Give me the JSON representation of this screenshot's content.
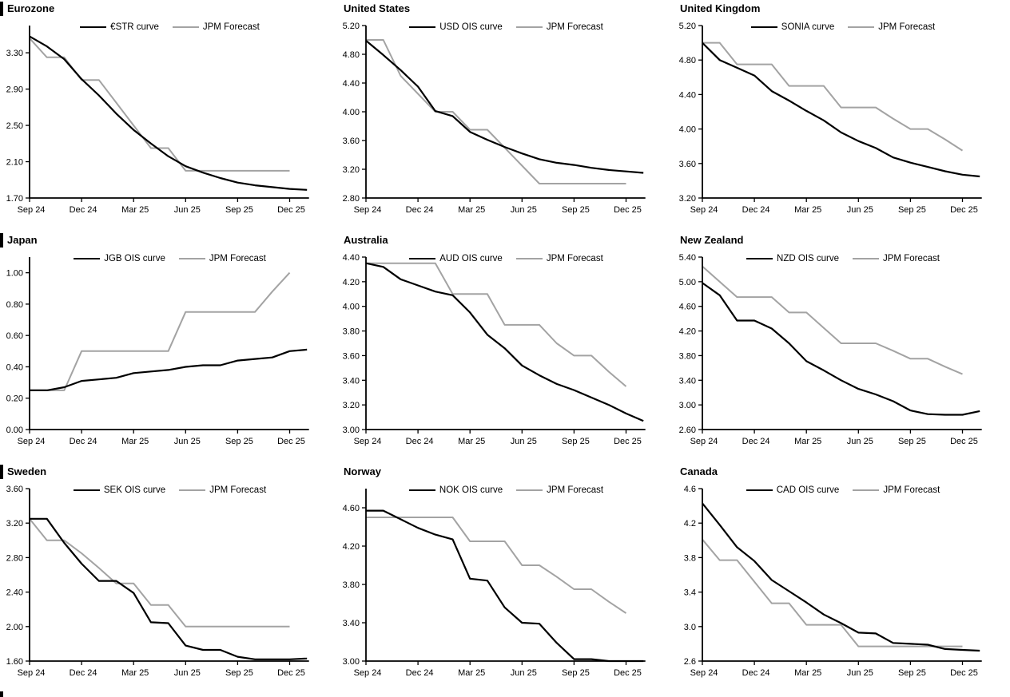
{
  "page": {
    "background": "#ffffff",
    "section_marker_color": "#000000",
    "black_series_color": "#000000",
    "gray_series_color": "#a3a3a3"
  },
  "chart_data": [
    {
      "type": "line",
      "title": "Eurozone",
      "has_left_section_bar": true,
      "x_tick_labels": [
        "Sep 24",
        "Dec 24",
        "Mar 25",
        "Jun 25",
        "Sep 25",
        "Dec 25"
      ],
      "y_ticks": [
        "1.70",
        "2.10",
        "2.50",
        "2.90",
        "3.30"
      ],
      "y_min": 1.7,
      "y_max": 3.6,
      "grid": false,
      "legend_position": "top-center",
      "series": [
        {
          "name": "€STR curve",
          "color": "#000000",
          "values": [
            3.48,
            3.37,
            3.23,
            3.01,
            2.83,
            2.63,
            2.45,
            2.3,
            2.16,
            2.05,
            1.98,
            1.92,
            1.87,
            1.84,
            1.82,
            1.8,
            1.79
          ]
        },
        {
          "name": "JPM Forecast",
          "color": "#a3a3a3",
          "values": [
            3.46,
            3.25,
            3.25,
            3.0,
            3.0,
            2.75,
            2.5,
            2.25,
            2.25,
            2.0,
            2.0,
            2.0,
            2.0,
            2.0,
            2.0,
            2.0
          ]
        }
      ]
    },
    {
      "type": "line",
      "title": "United States",
      "has_left_section_bar": false,
      "x_tick_labels": [
        "Sep 24",
        "Dec 24",
        "Mar 25",
        "Jun 25",
        "Sep 25",
        "Dec 25"
      ],
      "y_ticks": [
        "2.80",
        "3.20",
        "3.60",
        "4.00",
        "4.40",
        "4.80",
        "5.20"
      ],
      "y_min": 2.8,
      "y_max": 5.2,
      "grid": false,
      "legend_position": "top-center",
      "series": [
        {
          "name": "USD OIS curve",
          "color": "#000000",
          "values": [
            4.99,
            4.79,
            4.58,
            4.35,
            4.01,
            3.94,
            3.72,
            3.61,
            3.51,
            3.42,
            3.34,
            3.29,
            3.26,
            3.22,
            3.19,
            3.17,
            3.15
          ]
        },
        {
          "name": "JPM Forecast",
          "color": "#a3a3a3",
          "values": [
            5.0,
            5.0,
            4.5,
            4.25,
            4.0,
            4.0,
            3.75,
            3.75,
            3.5,
            3.25,
            3.0,
            3.0,
            3.0,
            3.0,
            3.0,
            3.0
          ]
        }
      ]
    },
    {
      "type": "line",
      "title": "United Kingdom",
      "has_left_section_bar": false,
      "x_tick_labels": [
        "Sep 24",
        "Dec 24",
        "Mar 25",
        "Jun 25",
        "Sep 25",
        "Dec 25"
      ],
      "y_ticks": [
        "3.20",
        "3.60",
        "4.00",
        "4.40",
        "4.80",
        "5.20"
      ],
      "y_min": 3.2,
      "y_max": 5.2,
      "grid": false,
      "legend_position": "top-center",
      "series": [
        {
          "name": "SONIA curve",
          "color": "#000000",
          "values": [
            5.0,
            4.8,
            4.71,
            4.62,
            4.44,
            4.33,
            4.21,
            4.1,
            3.96,
            3.86,
            3.78,
            3.67,
            3.61,
            3.56,
            3.51,
            3.47,
            3.45
          ]
        },
        {
          "name": "JPM Forecast",
          "color": "#a3a3a3",
          "values": [
            5.0,
            5.0,
            4.75,
            4.75,
            4.75,
            4.5,
            4.5,
            4.5,
            4.25,
            4.25,
            4.25,
            4.12,
            4.0,
            4.0,
            3.88,
            3.75
          ]
        }
      ]
    },
    {
      "type": "line",
      "title": "Japan",
      "has_left_section_bar": true,
      "x_tick_labels": [
        "Sep 24",
        "Dec 24",
        "Mar 25",
        "Jun 25",
        "Sep 25",
        "Dec 25"
      ],
      "y_ticks": [
        "0.00",
        "0.20",
        "0.40",
        "0.60",
        "0.80",
        "1.00"
      ],
      "y_min": 0.0,
      "y_max": 1.1,
      "grid": false,
      "legend_position": "top-center",
      "series": [
        {
          "name": "JGB OIS curve",
          "color": "#000000",
          "values": [
            0.25,
            0.25,
            0.27,
            0.31,
            0.32,
            0.33,
            0.36,
            0.37,
            0.38,
            0.4,
            0.41,
            0.41,
            0.44,
            0.45,
            0.46,
            0.5,
            0.51
          ]
        },
        {
          "name": "JPM Forecast",
          "color": "#a3a3a3",
          "values": [
            0.25,
            0.25,
            0.25,
            0.5,
            0.5,
            0.5,
            0.5,
            0.5,
            0.5,
            0.75,
            0.75,
            0.75,
            0.75,
            0.75,
            0.88,
            1.0
          ]
        }
      ]
    },
    {
      "type": "line",
      "title": "Australia",
      "has_left_section_bar": false,
      "x_tick_labels": [
        "Sep 24",
        "Dec 24",
        "Mar 25",
        "Jun 25",
        "Sep 25",
        "Dec 25"
      ],
      "y_ticks": [
        "3.00",
        "3.20",
        "3.40",
        "3.60",
        "3.80",
        "4.00",
        "4.20",
        "4.40"
      ],
      "y_min": 3.0,
      "y_max": 4.4,
      "grid": false,
      "legend_position": "top-center",
      "series": [
        {
          "name": "AUD OIS curve",
          "color": "#000000",
          "values": [
            4.35,
            4.32,
            4.22,
            4.17,
            4.12,
            4.09,
            3.95,
            3.77,
            3.66,
            3.52,
            3.44,
            3.37,
            3.32,
            3.26,
            3.2,
            3.13,
            3.07
          ]
        },
        {
          "name": "JPM Forecast",
          "color": "#a3a3a3",
          "values": [
            4.35,
            4.35,
            4.35,
            4.35,
            4.35,
            4.1,
            4.1,
            4.1,
            3.85,
            3.85,
            3.85,
            3.7,
            3.6,
            3.6,
            3.47,
            3.35
          ]
        }
      ]
    },
    {
      "type": "line",
      "title": "New Zealand",
      "has_left_section_bar": false,
      "x_tick_labels": [
        "Sep 24",
        "Dec 24",
        "Mar 25",
        "Jun 25",
        "Sep 25",
        "Dec 25"
      ],
      "y_ticks": [
        "2.60",
        "3.00",
        "3.40",
        "3.80",
        "4.20",
        "4.60",
        "5.00",
        "5.40"
      ],
      "y_min": 2.6,
      "y_max": 5.4,
      "grid": false,
      "legend_position": "top-center",
      "series": [
        {
          "name": "NZD OIS curve",
          "color": "#000000",
          "values": [
            4.98,
            4.78,
            4.37,
            4.37,
            4.24,
            4.0,
            3.71,
            3.56,
            3.4,
            3.26,
            3.17,
            3.06,
            2.91,
            2.85,
            2.84,
            2.84,
            2.9
          ]
        },
        {
          "name": "JPM Forecast",
          "color": "#a3a3a3",
          "values": [
            5.25,
            5.0,
            4.75,
            4.75,
            4.75,
            4.5,
            4.5,
            4.25,
            4.0,
            4.0,
            4.0,
            3.88,
            3.75,
            3.75,
            3.62,
            3.5
          ]
        }
      ]
    },
    {
      "type": "line",
      "title": "Sweden",
      "has_left_section_bar": true,
      "x_tick_labels": [
        "Sep 24",
        "Dec 24",
        "Mar 25",
        "Jun 25",
        "Sep 25",
        "Dec 25"
      ],
      "y_ticks": [
        "1.60",
        "2.00",
        "2.40",
        "2.80",
        "3.20",
        "3.60"
      ],
      "y_min": 1.6,
      "y_max": 3.6,
      "grid": false,
      "legend_position": "top-center",
      "series": [
        {
          "name": "SEK OIS curve",
          "color": "#000000",
          "values": [
            3.25,
            3.25,
            2.97,
            2.73,
            2.53,
            2.53,
            2.39,
            2.05,
            2.04,
            1.78,
            1.73,
            1.73,
            1.65,
            1.62,
            1.62,
            1.62,
            1.63
          ]
        },
        {
          "name": "JPM Forecast",
          "color": "#a3a3a3",
          "values": [
            3.25,
            3.0,
            3.0,
            2.85,
            2.68,
            2.5,
            2.5,
            2.25,
            2.25,
            2.0,
            2.0,
            2.0,
            2.0,
            2.0,
            2.0,
            2.0
          ]
        }
      ]
    },
    {
      "type": "line",
      "title": "Norway",
      "has_left_section_bar": false,
      "x_tick_labels": [
        "Sep 24",
        "Dec 24",
        "Mar 25",
        "Jun 25",
        "Sep 25",
        "Dec 25"
      ],
      "y_ticks": [
        "3.00",
        "3.40",
        "3.80",
        "4.20",
        "4.60"
      ],
      "y_min": 3.0,
      "y_max": 4.8,
      "grid": false,
      "legend_position": "top-center",
      "series": [
        {
          "name": "NOK OIS curve",
          "color": "#000000",
          "values": [
            4.57,
            4.57,
            4.48,
            4.39,
            4.32,
            4.27,
            3.86,
            3.84,
            3.56,
            3.4,
            3.39,
            3.19,
            3.02,
            3.02,
            3.0,
            3.0,
            3.0
          ]
        },
        {
          "name": "JPM Forecast",
          "color": "#a3a3a3",
          "values": [
            4.5,
            4.5,
            4.5,
            4.5,
            4.5,
            4.5,
            4.25,
            4.25,
            4.25,
            4.0,
            4.0,
            3.88,
            3.75,
            3.75,
            3.62,
            3.5
          ]
        }
      ]
    },
    {
      "type": "line",
      "title": "Canada",
      "has_left_section_bar": false,
      "x_tick_labels": [
        "Sep 24",
        "Dec 24",
        "Mar 25",
        "Jun 25",
        "Sep 25",
        "Dec 25"
      ],
      "y_ticks": [
        "2.6",
        "3.0",
        "3.4",
        "3.8",
        "4.2",
        "4.6"
      ],
      "y_min": 2.6,
      "y_max": 4.6,
      "grid": false,
      "legend_position": "top-center",
      "series": [
        {
          "name": "CAD OIS curve",
          "color": "#000000",
          "values": [
            4.43,
            4.18,
            3.92,
            3.76,
            3.54,
            3.41,
            3.28,
            3.14,
            3.04,
            2.93,
            2.92,
            2.81,
            2.8,
            2.79,
            2.74,
            2.73,
            2.72
          ]
        },
        {
          "name": "JPM Forecast",
          "color": "#a3a3a3",
          "values": [
            4.01,
            3.77,
            3.77,
            3.52,
            3.27,
            3.27,
            3.02,
            3.02,
            3.02,
            2.77,
            2.77,
            2.77,
            2.77,
            2.77,
            2.77,
            2.77
          ]
        }
      ]
    }
  ]
}
